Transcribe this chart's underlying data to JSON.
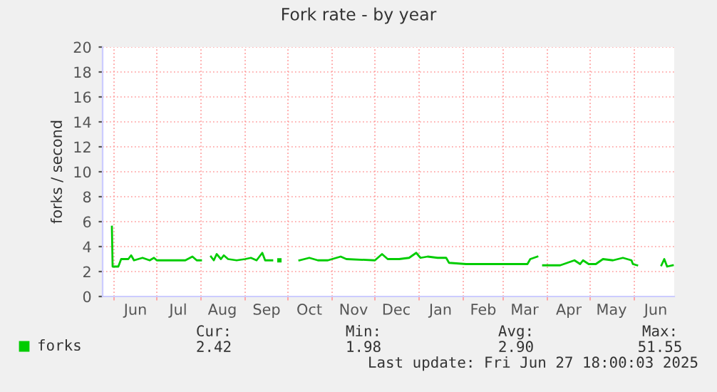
{
  "chart_data": {
    "type": "line",
    "title": "Fork rate - by year",
    "ylabel": "forks / second",
    "xlim": [
      "2024-05-24",
      "2025-06-29"
    ],
    "ylim": [
      0,
      20
    ],
    "yticks": [
      0,
      2,
      4,
      6,
      8,
      10,
      12,
      14,
      16,
      18,
      20
    ],
    "xticks": [
      {
        "value": "2024-06-01",
        "label": null
      },
      {
        "value": "2024-06-16",
        "label": "Jun"
      },
      {
        "value": "2024-07-01",
        "label": null
      },
      {
        "value": "2024-07-16",
        "label": "Jul"
      },
      {
        "value": "2024-08-01",
        "label": null
      },
      {
        "value": "2024-08-16",
        "label": "Aug"
      },
      {
        "value": "2024-09-01",
        "label": null
      },
      {
        "value": "2024-09-16",
        "label": "Sep"
      },
      {
        "value": "2024-10-01",
        "label": null
      },
      {
        "value": "2024-10-16",
        "label": "Oct"
      },
      {
        "value": "2024-11-01",
        "label": null
      },
      {
        "value": "2024-11-16",
        "label": "Nov"
      },
      {
        "value": "2024-12-01",
        "label": null
      },
      {
        "value": "2024-12-16",
        "label": "Dec"
      },
      {
        "value": "2025-01-01",
        "label": null
      },
      {
        "value": "2025-01-16",
        "label": "Jan"
      },
      {
        "value": "2025-02-01",
        "label": null
      },
      {
        "value": "2025-02-15",
        "label": "Feb"
      },
      {
        "value": "2025-03-01",
        "label": null
      },
      {
        "value": "2025-03-16",
        "label": "Mar"
      },
      {
        "value": "2025-04-01",
        "label": null
      },
      {
        "value": "2025-04-16",
        "label": "Apr"
      },
      {
        "value": "2025-05-01",
        "label": null
      },
      {
        "value": "2025-05-16",
        "label": "May"
      },
      {
        "value": "2025-06-01",
        "label": null
      },
      {
        "value": "2025-06-16",
        "label": "Jun"
      }
    ],
    "grid": true,
    "legend": "bottom",
    "series": [
      {
        "name": "forks",
        "color": "#00cc00",
        "x": [
          "2024-05-30T12:00",
          "2024-05-31",
          "2024-06-04",
          "2024-06-06",
          "2024-06-11",
          "2024-06-13",
          "2024-06-15",
          "2024-06-21",
          "2024-06-26",
          "2024-06-29",
          "2024-07-01",
          "2024-07-11",
          "2024-07-21",
          "2024-07-26",
          "2024-07-29",
          "2024-08-01",
          "2024-08-04",
          "2024-08-08",
          "2024-08-10",
          "2024-08-12",
          "2024-08-15",
          "2024-08-17",
          "2024-08-20",
          "2024-08-26",
          "2024-09-01",
          "2024-09-05",
          "2024-09-09",
          "2024-09-13",
          "2024-09-15",
          "2024-09-20",
          "2024-09-22",
          "2024-09-25",
          "2024-09-27",
          "2024-10-09",
          "2024-10-16",
          "2024-10-22",
          "2024-10-29",
          "2024-11-07",
          "2024-11-11",
          "2024-12-01",
          "2024-12-06",
          "2024-12-10",
          "2024-12-18",
          "2024-12-25",
          "2024-12-30",
          "2025-01-02",
          "2025-01-07",
          "2025-01-14",
          "2025-01-20",
          "2025-01-22",
          "2025-02-03",
          "2025-02-19",
          "2025-03-08",
          "2025-03-18",
          "2025-03-20",
          "2025-03-25",
          "2025-03-27",
          "2025-03-29",
          "2025-04-10",
          "2025-04-15",
          "2025-04-20",
          "2025-04-24",
          "2025-04-26",
          "2025-04-30",
          "2025-05-05",
          "2025-05-10",
          "2025-05-17",
          "2025-05-24",
          "2025-05-30",
          "2025-05-31",
          "2025-06-03",
          "2025-06-11",
          "2025-06-20",
          "2025-06-22",
          "2025-06-24",
          "2025-06-28"
        ],
        "values": [
          5.6,
          2.4,
          2.4,
          3.0,
          3.0,
          3.3,
          2.9,
          3.1,
          2.9,
          3.1,
          2.9,
          2.9,
          2.9,
          3.2,
          2.9,
          2.9,
          null,
          3.2,
          2.9,
          3.4,
          3.0,
          3.3,
          3.0,
          2.9,
          3.0,
          3.1,
          2.9,
          3.5,
          2.9,
          2.9,
          null,
          2.9,
          null,
          2.9,
          3.1,
          2.9,
          2.9,
          3.2,
          3.0,
          2.9,
          3.4,
          3.0,
          3.0,
          3.1,
          3.5,
          3.1,
          3.2,
          3.1,
          3.1,
          2.7,
          2.6,
          2.6,
          2.6,
          2.6,
          3.0,
          3.2,
          null,
          2.5,
          2.5,
          2.7,
          2.9,
          2.6,
          2.9,
          2.6,
          2.6,
          3.0,
          2.9,
          3.1,
          2.9,
          2.6,
          2.5,
          null,
          2.5,
          3.0,
          2.4,
          2.5
        ]
      }
    ],
    "annotations": [
      "Cur:",
      "2.42",
      "Min:",
      "1.98",
      "Avg:",
      "2.90",
      "Max:",
      "51.55",
      "Last update: Fri Jun 27 18:00:03 2025"
    ]
  }
}
